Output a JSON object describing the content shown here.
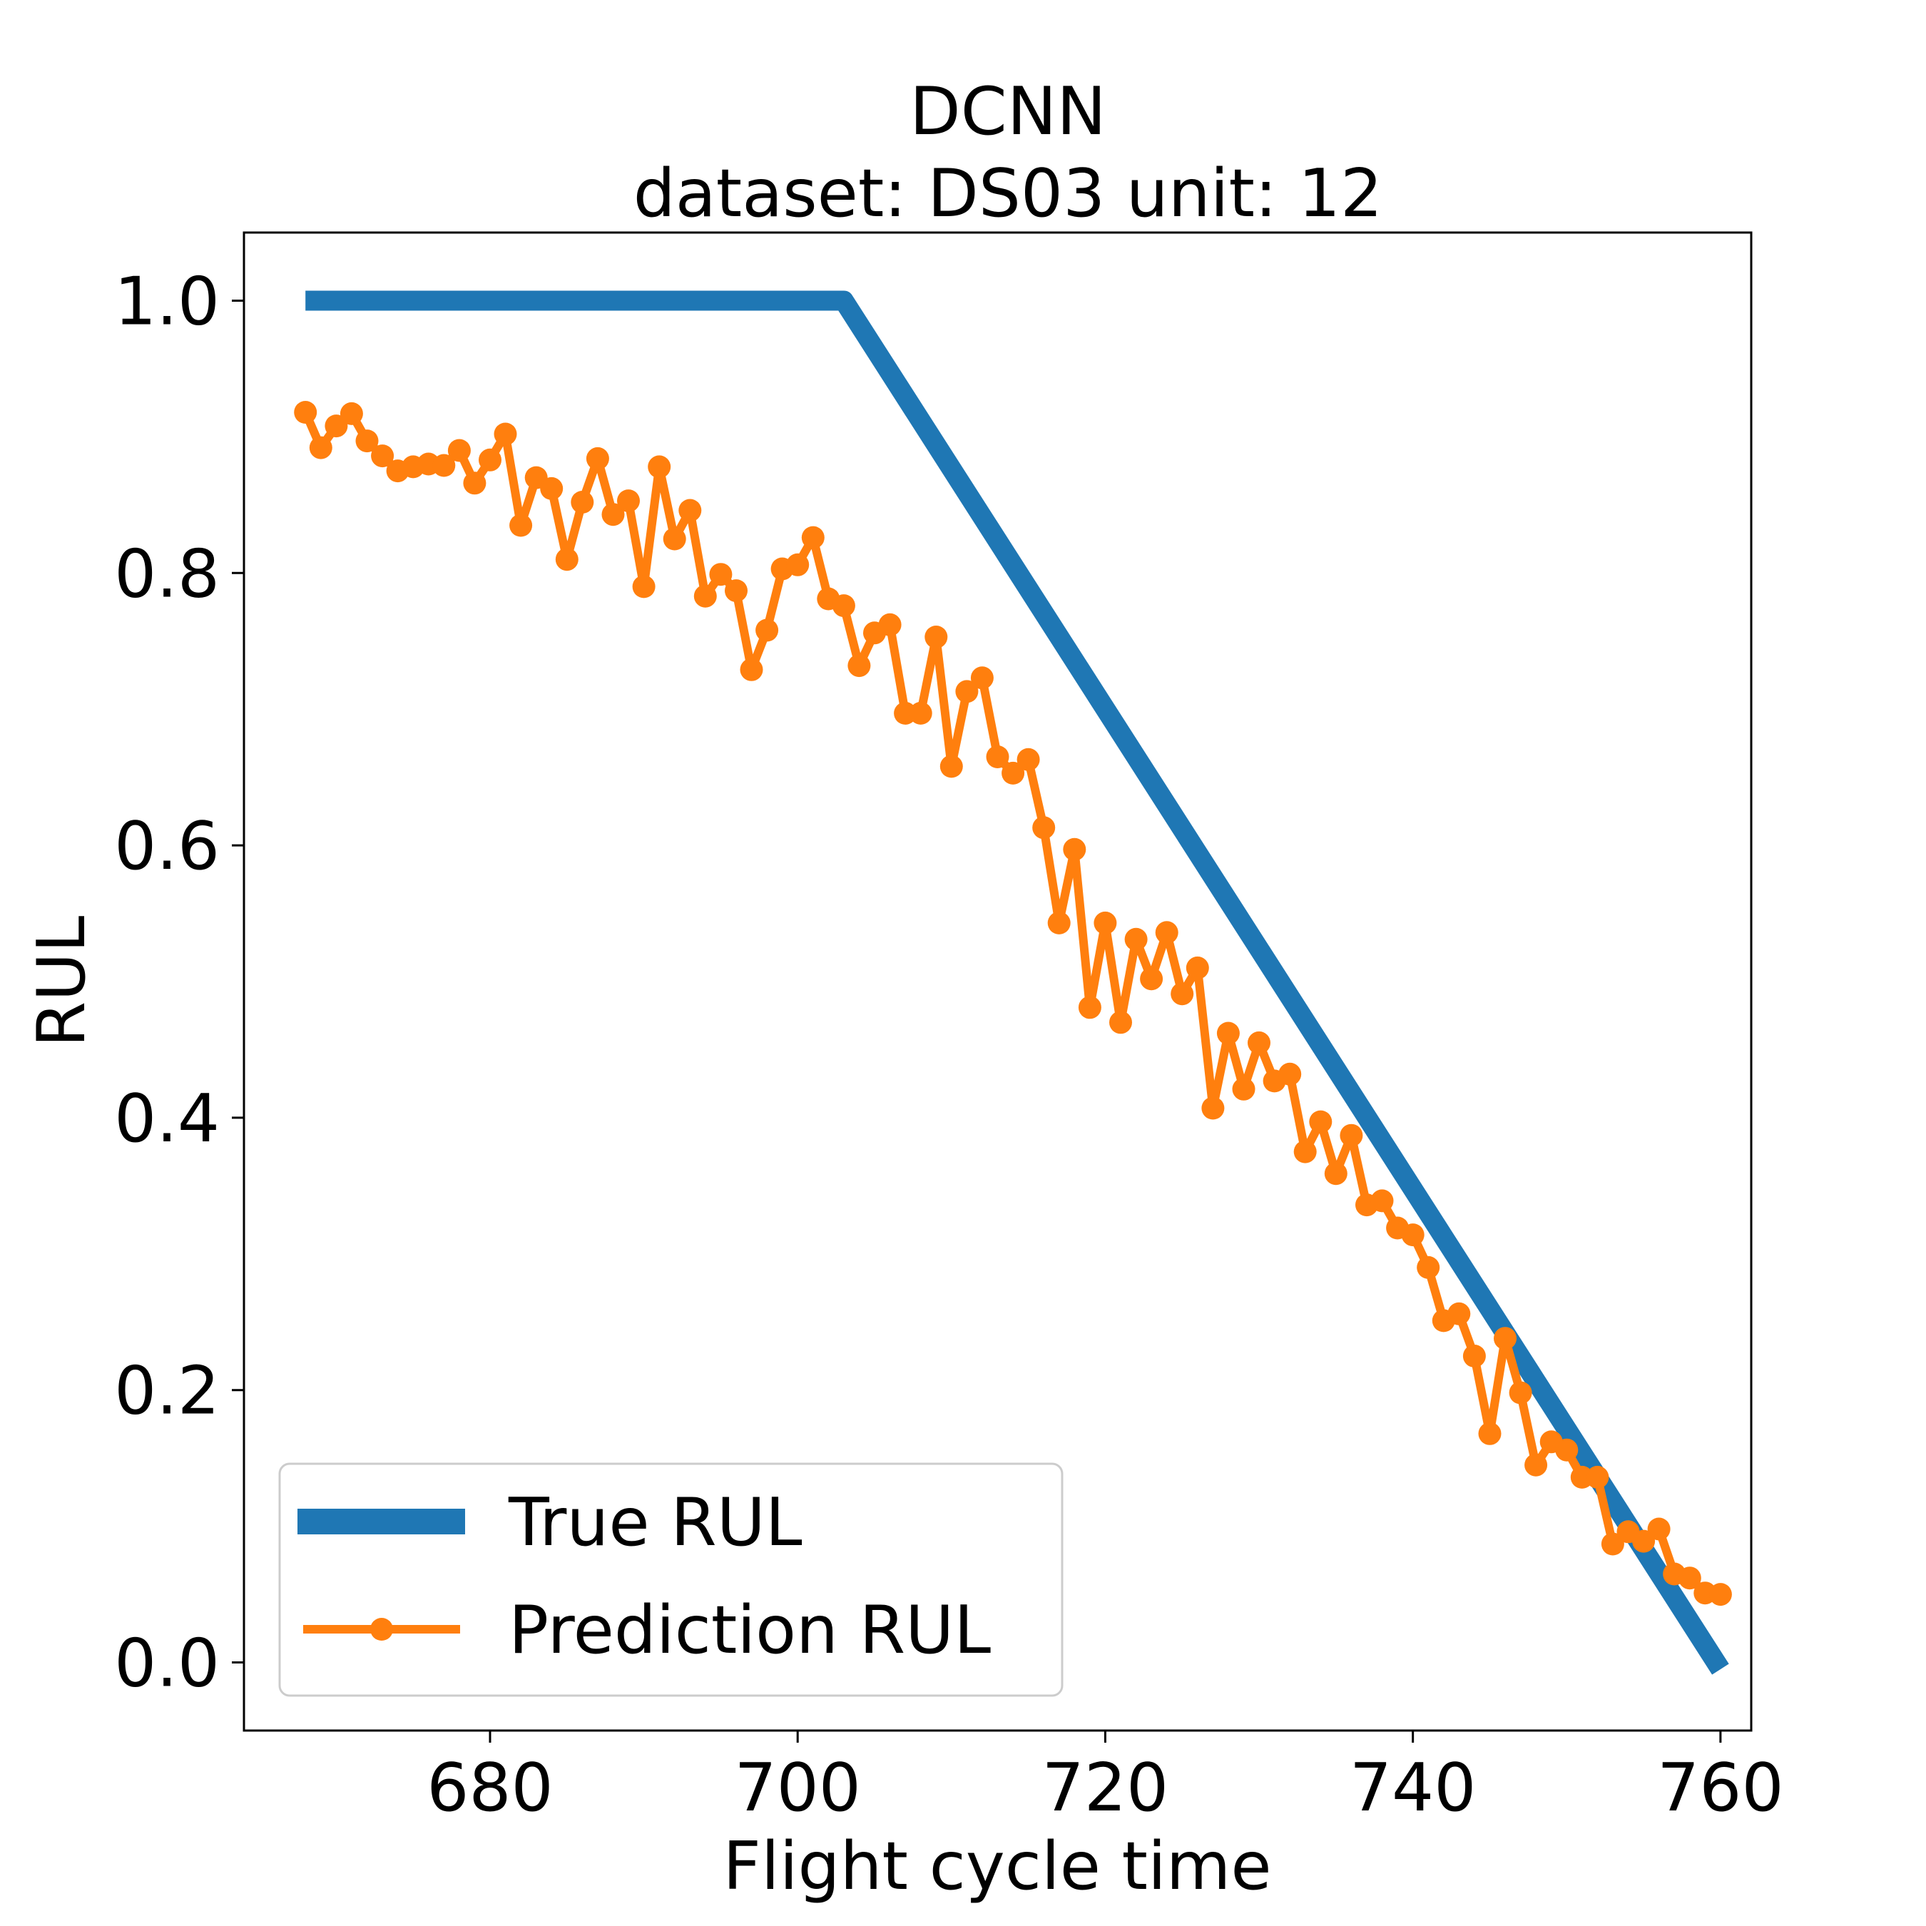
{
  "chart_data": {
    "type": "line",
    "title": "DCNN",
    "subtitle": "dataset: DS03 unit: 12",
    "xlabel": "Flight cycle time",
    "ylabel": "RUL",
    "xlim": [
      664,
      762
    ],
    "ylim": [
      -0.05,
      1.05
    ],
    "xticks": [
      680,
      700,
      720,
      740,
      760
    ],
    "yticks": [
      0.0,
      0.2,
      0.4,
      0.6,
      0.8,
      1.0
    ],
    "xtick_labels": [
      "680",
      "700",
      "720",
      "740",
      "760"
    ],
    "ytick_labels": [
      "0.0",
      "0.2",
      "0.4",
      "0.6",
      "0.8",
      "1.0"
    ],
    "grid": false,
    "legend_position": "lower-left",
    "series": [
      {
        "name": "True RUL",
        "color": "#1f77b4",
        "style": "line",
        "points": [
          [
            668,
            1.0
          ],
          [
            703,
            1.0
          ],
          [
            760,
            -0.005
          ]
        ]
      },
      {
        "name": "Prediction RUL",
        "color": "#ff7f0e",
        "style": "line-marker",
        "x_start": 668,
        "x_step": 1,
        "values": [
          0.918,
          0.892,
          0.908,
          0.917,
          0.897,
          0.886,
          0.875,
          0.878,
          0.88,
          0.879,
          0.89,
          0.866,
          0.883,
          0.902,
          0.835,
          0.87,
          0.862,
          0.81,
          0.852,
          0.884,
          0.843,
          0.853,
          0.79,
          0.878,
          0.825,
          0.846,
          0.783,
          0.799,
          0.787,
          0.729,
          0.758,
          0.803,
          0.806,
          0.826,
          0.781,
          0.776,
          0.732,
          0.756,
          0.762,
          0.697,
          0.697,
          0.753,
          0.658,
          0.713,
          0.723,
          0.665,
          0.653,
          0.663,
          0.613,
          0.543,
          0.597,
          0.481,
          0.543,
          0.47,
          0.531,
          0.502,
          0.536,
          0.491,
          0.51,
          0.407,
          0.462,
          0.421,
          0.455,
          0.427,
          0.432,
          0.375,
          0.397,
          0.359,
          0.387,
          0.336,
          0.339,
          0.319,
          0.314,
          0.29,
          0.251,
          0.256,
          0.225,
          0.168,
          0.238,
          0.198,
          0.145,
          0.162,
          0.156,
          0.136,
          0.136,
          0.087,
          0.096,
          0.089,
          0.098,
          0.065,
          0.062,
          0.051,
          0.05
        ]
      }
    ]
  }
}
